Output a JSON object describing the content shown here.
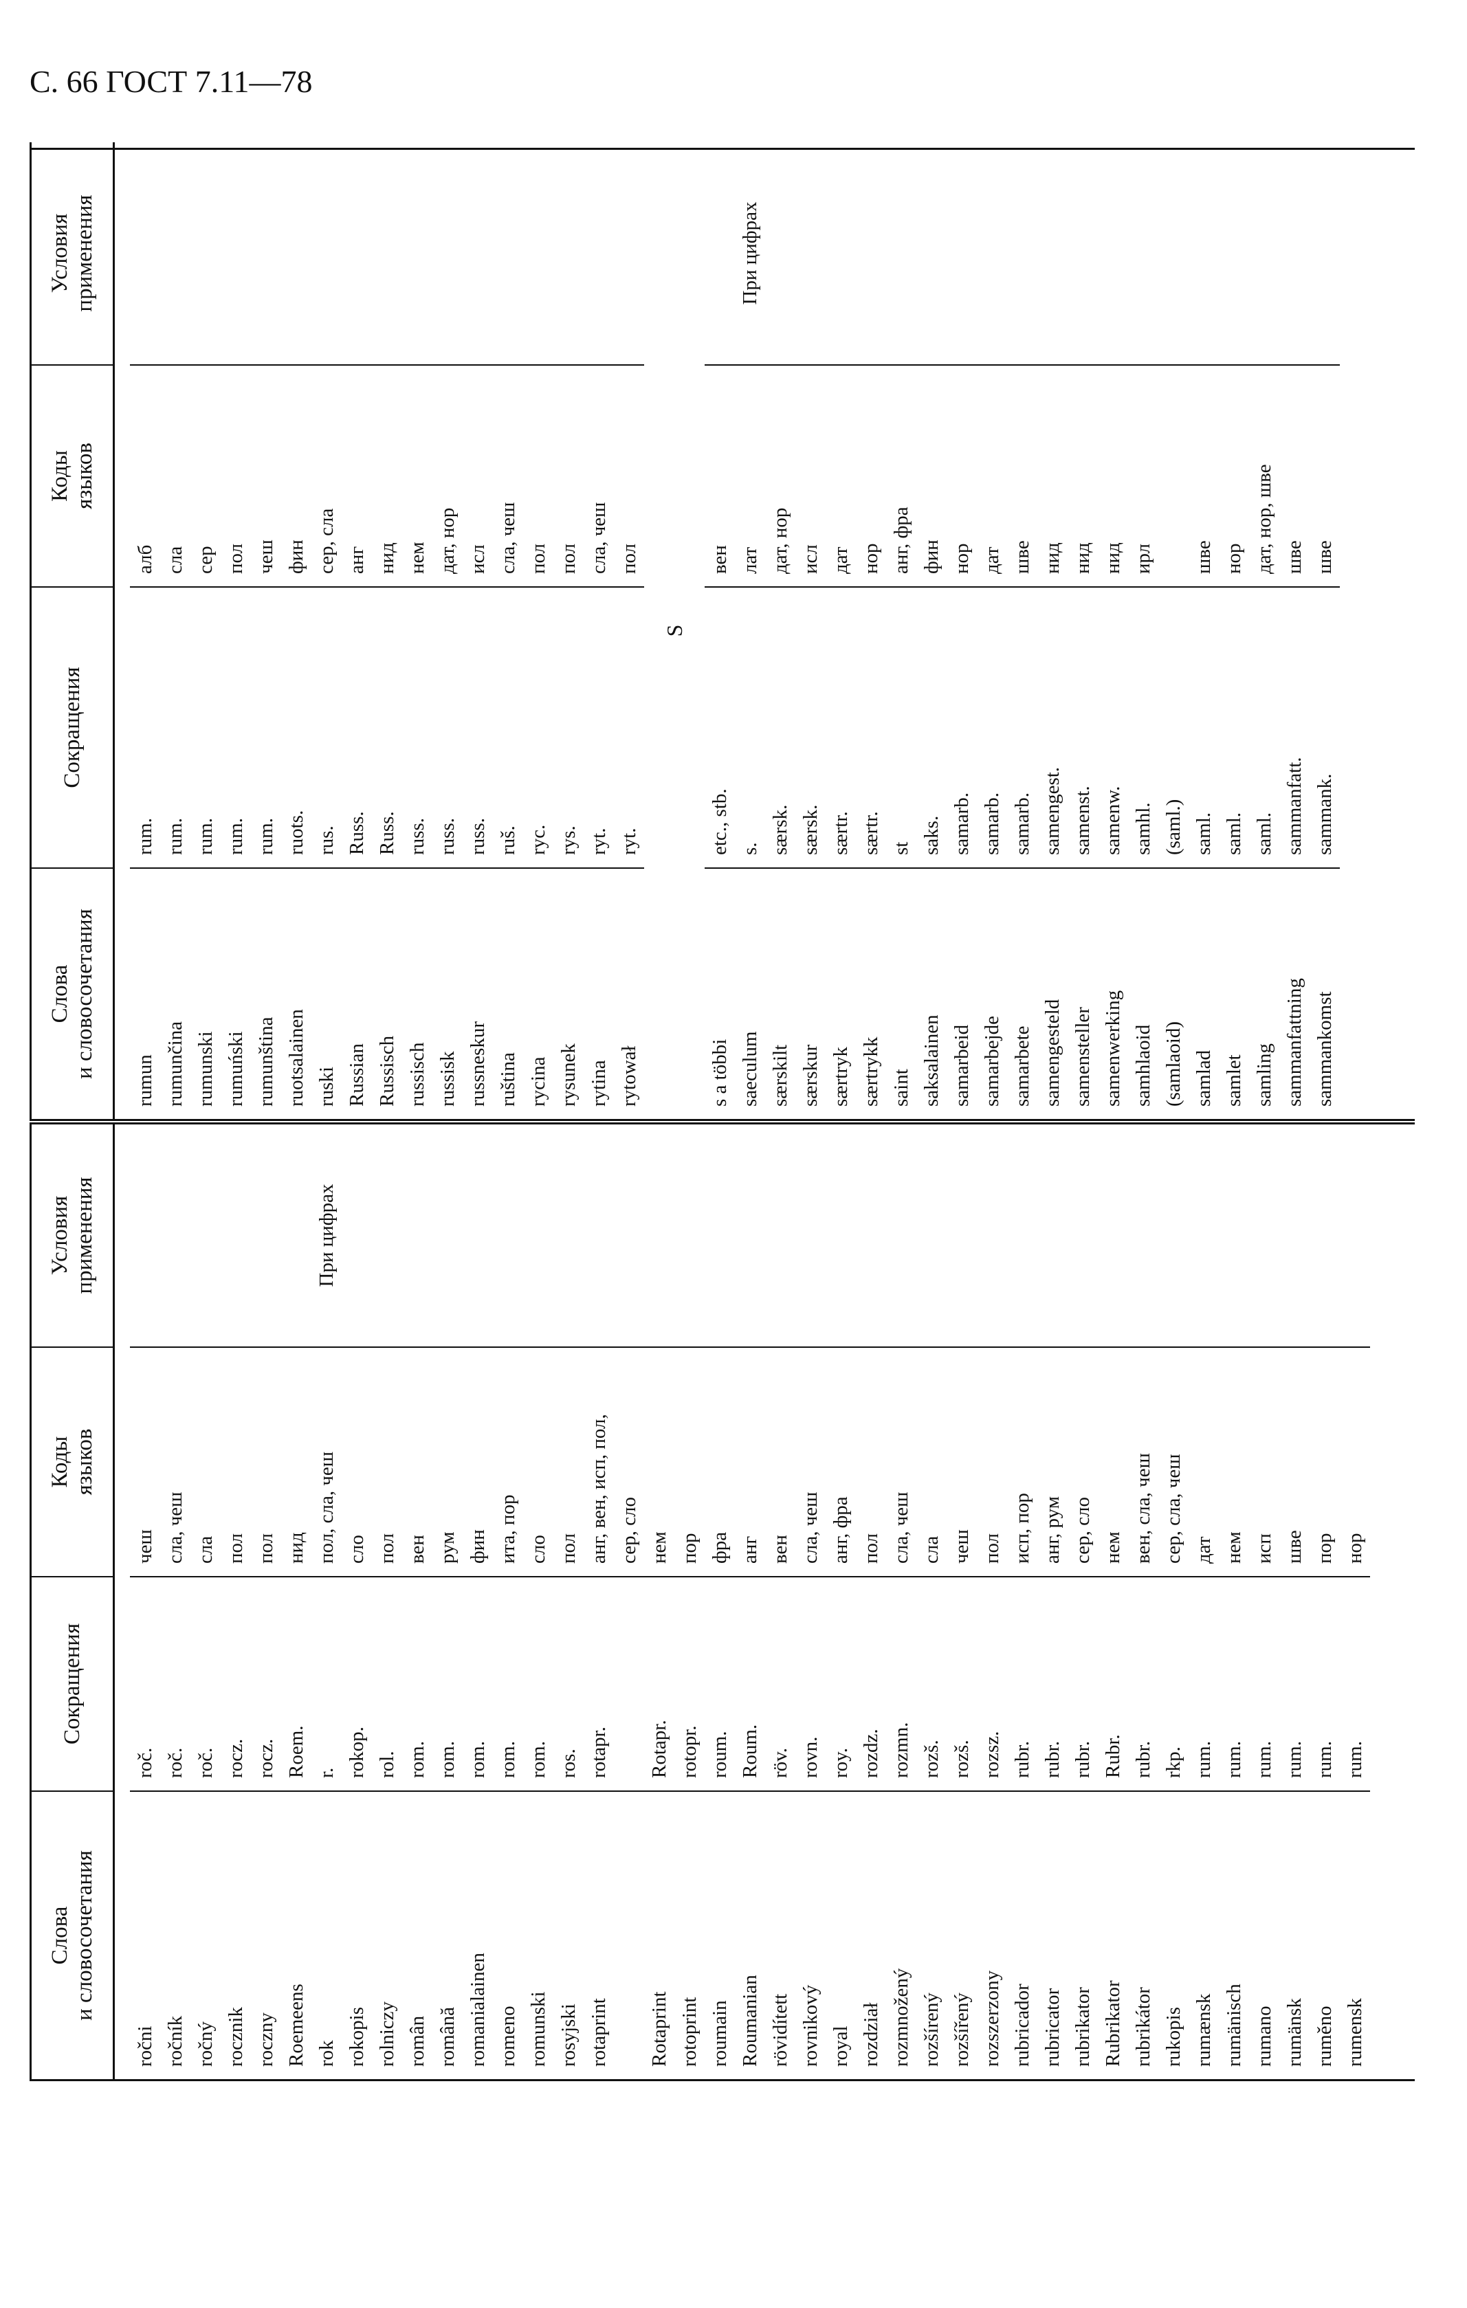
{
  "header": {
    "page": "С. 66 ГОСТ 7.11—78"
  },
  "table": {
    "columns": [
      [
        "Слова",
        "и словосочетания"
      ],
      [
        "Сокращения"
      ],
      [
        "Коды",
        "языков"
      ],
      [
        "Условия",
        "применения"
      ]
    ],
    "left_rows": [
      {
        "word": "ročni",
        "abbr": "roč.",
        "codes": "чеш"
      },
      {
        "word": "ročník",
        "abbr": "roč.",
        "codes": "сла, чеш"
      },
      {
        "word": "ročný",
        "abbr": "roč.",
        "codes": "сла"
      },
      {
        "word": "rocznik",
        "abbr": "rocz.",
        "codes": "пол"
      },
      {
        "word": "roczny",
        "abbr": "rocz.",
        "codes": "пол"
      },
      {
        "word": "Roemeens",
        "abbr": "Roem.",
        "codes": "нид"
      },
      {
        "word": "rok",
        "abbr": "r.",
        "codes": "пол, сла, чеш",
        "use": "При цифрах"
      },
      {
        "word": "rokopis",
        "abbr": "rokop.",
        "codes": "сло"
      },
      {
        "word": "rolniczy",
        "abbr": "rol.",
        "codes": "пол"
      },
      {
        "word": "român",
        "abbr": "rom.",
        "codes": "вен"
      },
      {
        "word": "română",
        "abbr": "rom.",
        "codes": "рум"
      },
      {
        "word": "romanialainen",
        "abbr": "rom.",
        "codes": "фин"
      },
      {
        "word": "romeno",
        "abbr": "rom.",
        "codes": "ита, пор"
      },
      {
        "word": "romunski",
        "abbr": "rom.",
        "codes": "сло"
      },
      {
        "word": "rosyjski",
        "abbr": "ros.",
        "codes": "пол"
      },
      {
        "word": "rotaprint",
        "abbr": "rotapr.",
        "codes": "анг, вен, исп, пол,"
      },
      {
        "codes": "сер, сло"
      },
      {
        "word": "Rotaprint",
        "abbr": "Rotapr.",
        "codes": "нем"
      },
      {
        "word": "rotoprint",
        "abbr": "rotopr.",
        "codes": "пор"
      },
      {
        "word": "roumain",
        "abbr": "roum.",
        "codes": "фра"
      },
      {
        "word": "Roumanian",
        "abbr": "Roum.",
        "codes": "анг"
      },
      {
        "word": "rövidített",
        "abbr": "röv.",
        "codes": "вен"
      },
      {
        "word": "rovnikový",
        "abbr": "rovn.",
        "codes": "сла, чеш"
      },
      {
        "word": "royal",
        "abbr": "roy.",
        "codes": "анг, фра"
      },
      {
        "word": "rozdział",
        "abbr": "rozdz.",
        "codes": "пол"
      },
      {
        "word": "rozmnožený",
        "abbr": "rozmn.",
        "codes": "сла, чеш"
      },
      {
        "word": "rozšírený",
        "abbr": "rozš.",
        "codes": "сла"
      },
      {
        "word": "rozšířený",
        "abbr": "rozš.",
        "codes": "чеш"
      },
      {
        "word": "rozszerzony",
        "abbr": "rozsz.",
        "codes": "пол"
      },
      {
        "word": "rubricador",
        "abbr": "rubr.",
        "codes": "исп, пор"
      },
      {
        "word": "rubricator",
        "abbr": "rubr.",
        "codes": "анг, рум"
      },
      {
        "word": "rubrikator",
        "abbr": "rubr.",
        "codes": "сер, сло"
      },
      {
        "word": "Rubrikator",
        "abbr": "Rubr.",
        "codes": "нем"
      },
      {
        "word": "rubrikátor",
        "abbr": "rubr.",
        "codes": "вен, сла, чеш"
      },
      {
        "word": "rukopis",
        "abbr": "rkp.",
        "codes": "сер, сла, чеш"
      },
      {
        "word": "rumænsk",
        "abbr": "rum.",
        "codes": "дат"
      },
      {
        "word": "rumänisch",
        "abbr": "rum.",
        "codes": "нем"
      },
      {
        "word": "rumano",
        "abbr": "rum.",
        "codes": "исп"
      },
      {
        "word": "rumänsk",
        "abbr": "rum.",
        "codes": "шве"
      },
      {
        "word": "ruměno",
        "abbr": "rum.",
        "codes": "пор"
      },
      {
        "word": "rumensk",
        "abbr": "rum.",
        "codes": "нор"
      }
    ],
    "right_rows": [
      {
        "word": "rumun",
        "abbr": "rum.",
        "codes": "алб"
      },
      {
        "word": "rumunčina",
        "abbr": "rum.",
        "codes": "сла"
      },
      {
        "word": "rumunski",
        "abbr": "rum.",
        "codes": "сер"
      },
      {
        "word": "rumuński",
        "abbr": "rum.",
        "codes": "пол"
      },
      {
        "word": "rumunština",
        "abbr": "rum.",
        "codes": "чеш"
      },
      {
        "word": "ruotsalainen",
        "abbr": "ruots.",
        "codes": "фин"
      },
      {
        "word": "ruski",
        "abbr": "rus.",
        "codes": "сер, сла"
      },
      {
        "word": "Russian",
        "abbr": "Russ.",
        "codes": "анг"
      },
      {
        "word": "Russisch",
        "abbr": "Russ.",
        "codes": "нид"
      },
      {
        "word": "russisch",
        "abbr": "russ.",
        "codes": "нем"
      },
      {
        "word": "russisk",
        "abbr": "russ.",
        "codes": "дат, нор"
      },
      {
        "word": "russneskur",
        "abbr": "russ.",
        "codes": "исл"
      },
      {
        "word": "ruština",
        "abbr": "ruš.",
        "codes": "сла, чеш"
      },
      {
        "word": "rycina",
        "abbr": "ryc.",
        "codes": "пол"
      },
      {
        "word": "rysunek",
        "abbr": "rys.",
        "codes": "пол"
      },
      {
        "word": "rytina",
        "abbr": "ryt.",
        "codes": "сла, чеш"
      },
      {
        "word": "rytował",
        "abbr": "ryt.",
        "codes": "пол"
      },
      {
        "section": "S"
      },
      {
        "word": "s a többi",
        "abbr": "etc., stb.",
        "codes": "вен"
      },
      {
        "word": "saeculum",
        "abbr": "s.",
        "codes": "лат",
        "use": "При цифрах"
      },
      {
        "word": "særskilt",
        "abbr": "særsk.",
        "codes": "дат, нор"
      },
      {
        "word": "særskur",
        "abbr": "særsk.",
        "codes": "исл"
      },
      {
        "word": "særtryk",
        "abbr": "særtr.",
        "codes": "дат"
      },
      {
        "word": "særtrykk",
        "abbr": "særtr.",
        "codes": "нор"
      },
      {
        "word": "saint",
        "abbr": "st",
        "codes": "анг, фра"
      },
      {
        "word": "saksalainen",
        "abbr": "saks.",
        "codes": "фин"
      },
      {
        "word": "samarbeid",
        "abbr": "samarb.",
        "codes": "нор"
      },
      {
        "word": "samarbejde",
        "abbr": "samarb.",
        "codes": "дат"
      },
      {
        "word": "samarbete",
        "abbr": "samarb.",
        "codes": "шве"
      },
      {
        "word": "samengesteld",
        "abbr": "samengest.",
        "codes": "нид"
      },
      {
        "word": "samensteller",
        "abbr": "samenst.",
        "codes": "нид"
      },
      {
        "word": "samenwerking",
        "abbr": "samenw.",
        "codes": "нид"
      },
      {
        "word": "samhlaoid",
        "abbr": "samhl.",
        "codes": "ирл"
      },
      {
        "word": "(samlaoid)",
        "abbr": "(saml.)"
      },
      {
        "word": "samlad",
        "abbr": "saml.",
        "codes": "шве"
      },
      {
        "word": "samlet",
        "abbr": "saml.",
        "codes": "нор"
      },
      {
        "word": "samling",
        "abbr": "saml.",
        "codes": "дат, нор, шве"
      },
      {
        "word": "sammanfattning",
        "abbr": "sammanfatt.",
        "codes": "шве"
      },
      {
        "word": "sammankomst",
        "abbr": "sammank.",
        "codes": "шве"
      }
    ]
  }
}
